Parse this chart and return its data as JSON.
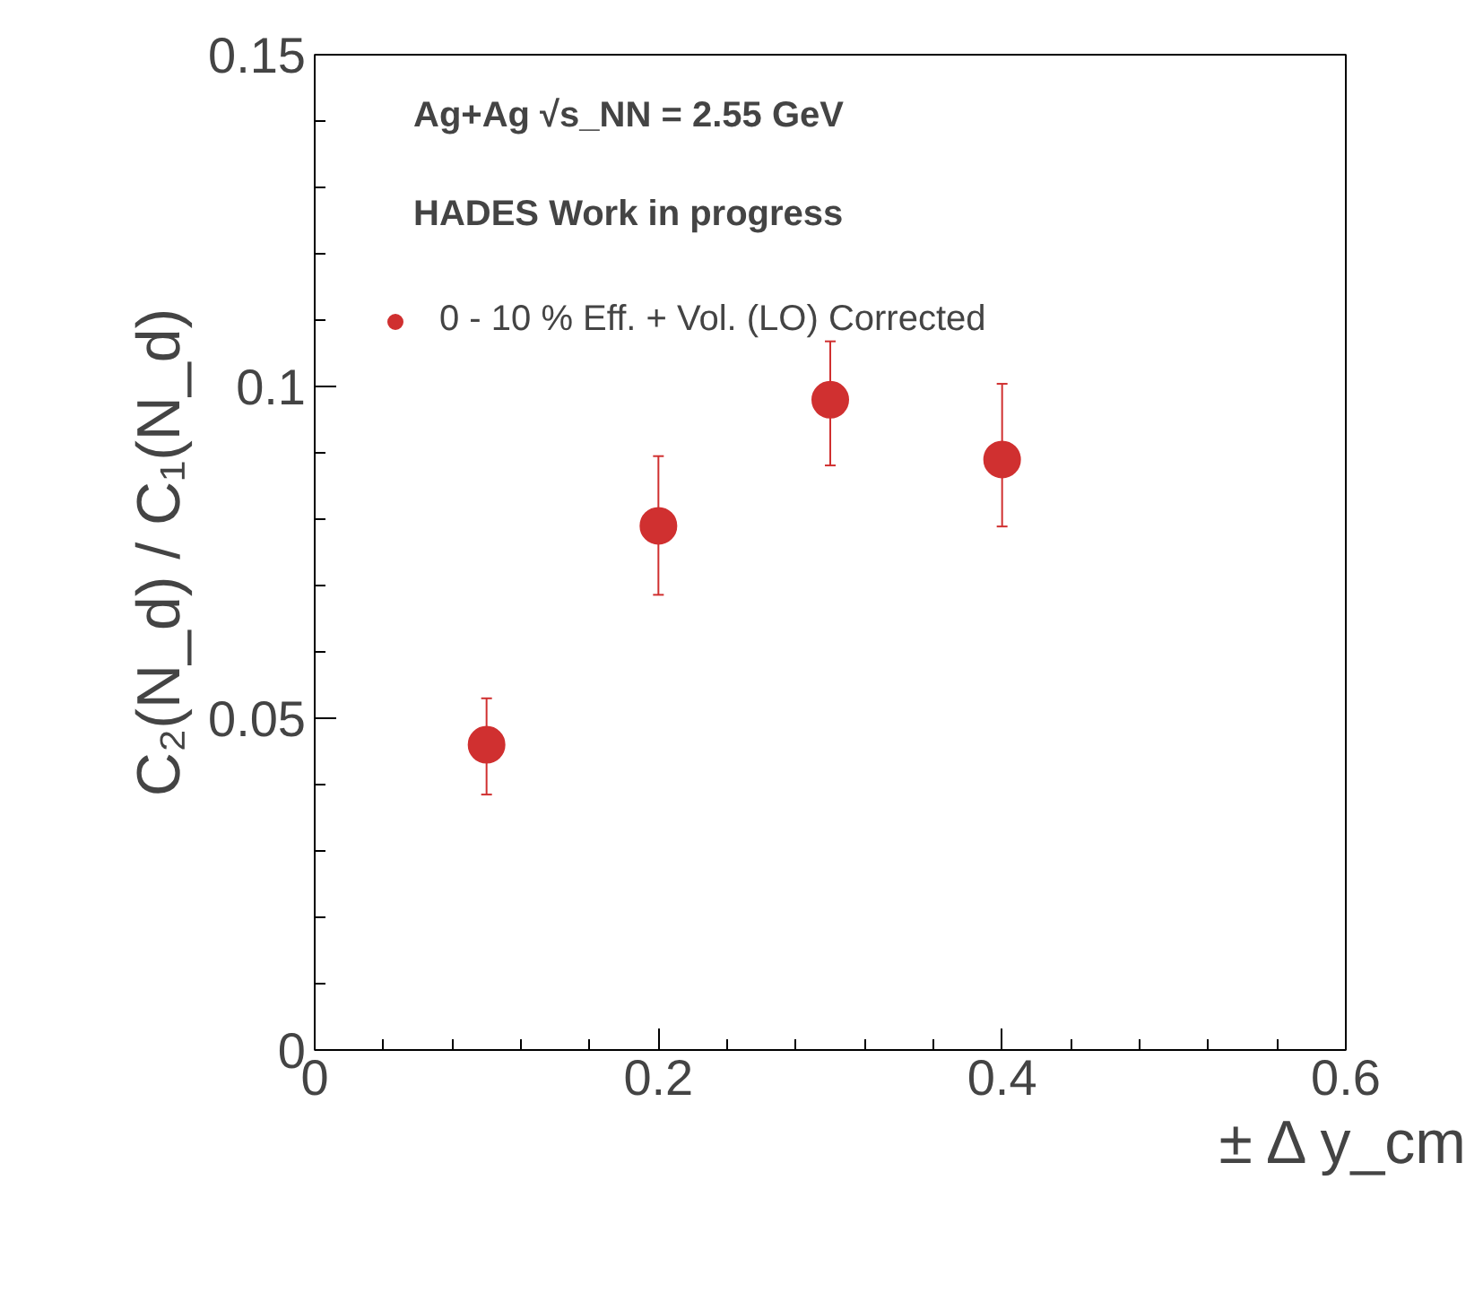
{
  "chart_data": {
    "type": "scatter",
    "xlabel": "± Δ y_cm",
    "ylabel": "C₂(N_d) / C₁(N_d)",
    "annotations": [
      "Ag+Ag √s_NN = 2.55 GeV",
      "HADES Work in progress"
    ],
    "x": [
      0.1,
      0.2,
      0.3,
      0.4
    ],
    "series": [
      {
        "name": "0 - 10 % Eff. + Vol. (LO) Corrected",
        "color": "#d03030",
        "values": [
          0.046,
          0.079,
          0.098,
          0.089
        ],
        "errors": [
          [
            0.0385,
            0.053
          ],
          [
            0.0686,
            0.0895
          ],
          [
            0.0881,
            0.1068
          ],
          [
            0.0789,
            0.1004
          ]
        ]
      }
    ],
    "xlim": [
      0,
      0.6
    ],
    "ylim": [
      0,
      0.15
    ],
    "xticks": [
      0,
      0.2,
      0.4,
      0.6
    ],
    "yticks": [
      0,
      0.05,
      0.1,
      0.15
    ],
    "grid": false,
    "legend": "top left",
    "marker": "circle"
  }
}
